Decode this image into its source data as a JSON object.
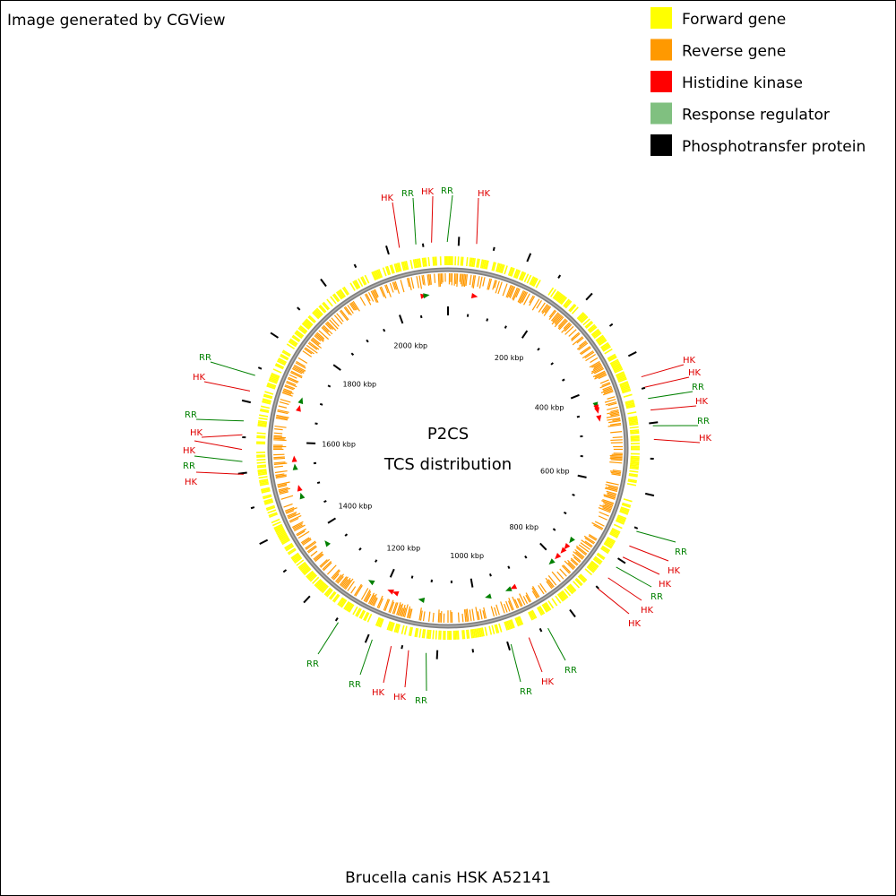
{
  "header": {
    "text": "Image generated by CGView"
  },
  "legend": [
    {
      "label": "Forward gene",
      "color": "#ffff00"
    },
    {
      "label": "Reverse gene",
      "color": "#ff9900"
    },
    {
      "label": "Histidine kinase",
      "color": "#ff0000"
    },
    {
      "label": "Response regulator",
      "color": "#80c080"
    },
    {
      "label": "Phosphotransfer protein",
      "color": "#000000"
    }
  ],
  "center": {
    "title": "P2CS",
    "subtitle": "TCS distribution"
  },
  "footer": {
    "text": "Brucella canis HSK A52141"
  },
  "scale_labels": [
    "200 kbp",
    "400 kbp",
    "600 kbp",
    "800 kbp",
    "1000 kbp",
    "1200 kbp",
    "1400 kbp",
    "1600 kbp",
    "1800 kbp",
    "2000 kbp"
  ],
  "callouts": [
    {
      "label": "HK",
      "color": "#e00000"
    },
    {
      "label": "RR",
      "color": "#008000"
    },
    {
      "label": "HK",
      "color": "#e00000"
    },
    {
      "label": "RR",
      "color": "#008000"
    },
    {
      "label": "HK",
      "color": "#e00000"
    },
    {
      "label": "HK",
      "color": "#e00000"
    },
    {
      "label": "HK",
      "color": "#e00000"
    },
    {
      "label": "RR",
      "color": "#008000"
    },
    {
      "label": "HK",
      "color": "#e00000"
    },
    {
      "label": "RR",
      "color": "#008000"
    },
    {
      "label": "HK",
      "color": "#e00000"
    },
    {
      "label": "RR",
      "color": "#008000"
    },
    {
      "label": "HK",
      "color": "#e00000"
    },
    {
      "label": "HK",
      "color": "#e00000"
    },
    {
      "label": "RR",
      "color": "#008000"
    },
    {
      "label": "HK",
      "color": "#e00000"
    },
    {
      "label": "HK",
      "color": "#e00000"
    },
    {
      "label": "RR",
      "color": "#008000"
    },
    {
      "label": "HK",
      "color": "#e00000"
    },
    {
      "label": "RR",
      "color": "#008000"
    },
    {
      "label": "RR",
      "color": "#008000"
    },
    {
      "label": "HK",
      "color": "#e00000"
    },
    {
      "label": "HK",
      "color": "#e00000"
    },
    {
      "label": "RR",
      "color": "#008000"
    },
    {
      "label": "RR",
      "color": "#008000"
    },
    {
      "label": "RR",
      "color": "#008000"
    },
    {
      "label": "HK",
      "color": "#e00000"
    },
    {
      "label": "RR",
      "color": "#008000"
    },
    {
      "label": "HK",
      "color": "#e00000"
    },
    {
      "label": "HK",
      "color": "#e00000"
    },
    {
      "label": "RR",
      "color": "#008000"
    },
    {
      "label": "HK",
      "color": "#e00000"
    }
  ]
}
